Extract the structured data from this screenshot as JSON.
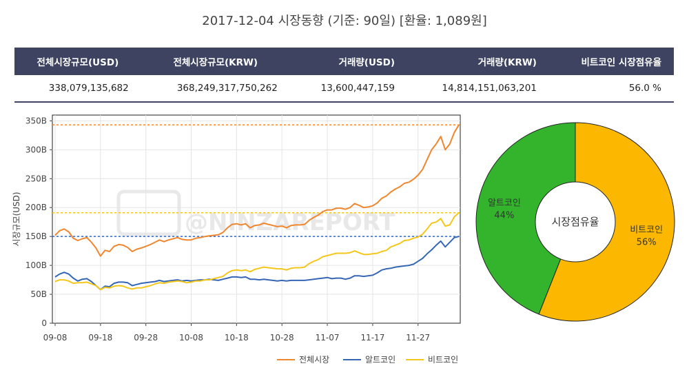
{
  "title": "2017-12-04 시장동향 (기준: 90일)   [환율: 1,089원]",
  "summary": {
    "headers": [
      "전체시장규모(USD)",
      "전체시장규모(KRW)",
      "거래량(USD)",
      "거래량(KRW)",
      "비트코인 시장점유율"
    ],
    "values": [
      "338,079,135,682",
      "368,249,317,750,262",
      "13,600,447,159",
      "14,814,151,063,201",
      "56.0 %"
    ]
  },
  "colors": {
    "total": "#f0862e",
    "alt": "#3566b5",
    "btc": "#f5c61a",
    "pie_alt": "#33b42c",
    "pie_btc": "#fcb800",
    "header_bg": "#3d4360"
  },
  "watermark": "@NINZAREPORT",
  "chart_data": [
    {
      "type": "line",
      "ylabel": "시장규모(USD)",
      "xlabel": "",
      "ylim": [
        0,
        360
      ],
      "yticks": [
        0,
        50,
        100,
        150,
        200,
        250,
        300,
        350
      ],
      "ytick_labels": [
        "0",
        "50B",
        "100B",
        "150B",
        "200B",
        "250B",
        "300B",
        "350B"
      ],
      "xtick_labels": [
        "09-08",
        "09-18",
        "09-28",
        "10-08",
        "10-18",
        "10-28",
        "11-07",
        "11-17",
        "11-27"
      ],
      "x_start_day": 0,
      "x_end_day": 88,
      "grid": true,
      "legend_position": "bottom-right",
      "reference_lines": [
        {
          "series": "전체시장",
          "value": 343
        },
        {
          "series": "비트코인",
          "value": 191
        },
        {
          "series": "알트코인",
          "value": 150
        }
      ],
      "series": [
        {
          "name": "전체시장",
          "values": [
            152,
            160,
            163,
            158,
            147,
            143,
            146,
            148,
            140,
            130,
            116,
            126,
            124,
            133,
            136,
            135,
            131,
            124,
            128,
            130,
            133,
            136,
            140,
            144,
            141,
            144,
            146,
            148,
            145,
            144,
            144,
            147,
            148,
            150,
            151,
            152,
            153,
            157,
            165,
            171,
            172,
            170,
            172,
            165,
            169,
            170,
            173,
            171,
            169,
            167,
            168,
            165,
            169,
            170,
            170,
            171,
            178,
            183,
            187,
            193,
            196,
            196,
            199,
            199,
            197,
            200,
            207,
            204,
            200,
            201,
            203,
            208,
            216,
            220,
            227,
            232,
            236,
            242,
            244,
            249,
            256,
            266,
            283,
            300,
            310,
            323,
            300,
            310,
            330,
            343
          ]
        },
        {
          "name": "알트코인",
          "values": [
            80,
            85,
            88,
            85,
            78,
            73,
            76,
            77,
            72,
            65,
            58,
            64,
            63,
            69,
            71,
            71,
            70,
            65,
            67,
            69,
            70,
            71,
            72,
            74,
            72,
            73,
            74,
            75,
            73,
            74,
            73,
            74,
            75,
            75,
            76,
            75,
            74,
            76,
            78,
            80,
            80,
            79,
            80,
            76,
            76,
            75,
            76,
            75,
            74,
            73,
            74,
            73,
            74,
            74,
            74,
            74,
            75,
            76,
            77,
            78,
            79,
            77,
            78,
            78,
            76,
            78,
            82,
            82,
            81,
            82,
            83,
            87,
            92,
            94,
            95,
            97,
            98,
            99,
            100,
            102,
            107,
            112,
            120,
            127,
            135,
            142,
            132,
            140,
            148,
            150
          ]
        },
        {
          "name": "비트코인",
          "values": [
            72,
            75,
            75,
            73,
            69,
            70,
            70,
            71,
            68,
            65,
            58,
            62,
            61,
            64,
            65,
            64,
            61,
            59,
            61,
            61,
            63,
            65,
            68,
            70,
            69,
            71,
            72,
            73,
            72,
            70,
            71,
            73,
            73,
            75,
            75,
            77,
            79,
            81,
            87,
            91,
            92,
            91,
            92,
            89,
            93,
            95,
            97,
            96,
            95,
            94,
            94,
            92,
            95,
            96,
            96,
            97,
            103,
            107,
            110,
            115,
            117,
            119,
            121,
            121,
            121,
            122,
            125,
            122,
            119,
            119,
            120,
            121,
            124,
            126,
            132,
            135,
            138,
            143,
            144,
            147,
            149,
            154,
            163,
            173,
            175,
            181,
            168,
            170,
            184,
            191
          ]
        }
      ]
    },
    {
      "type": "pie",
      "title": "시장점유율",
      "hole": true,
      "series": [
        {
          "name": "알트코인",
          "value": 44,
          "label": "44%"
        },
        {
          "name": "비트코인",
          "value": 56,
          "label": "56%"
        }
      ]
    }
  ]
}
